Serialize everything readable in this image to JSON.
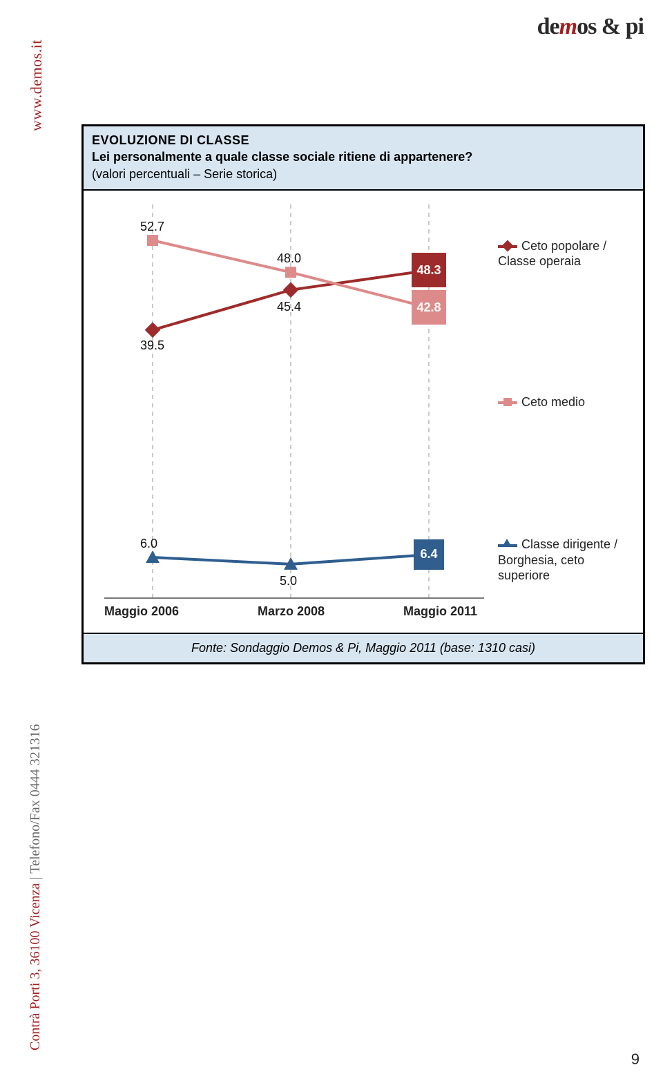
{
  "brand": {
    "logo_prefix": "de",
    "logo_m": "m",
    "logo_suffix": "os & pi"
  },
  "sidebar": {
    "url": "www.demos.it",
    "address_prefix": "Contrà Porti 3, 36100 Vicenza",
    "address_suffix": "Telefono/Fax 0444 321316"
  },
  "chart": {
    "type": "line",
    "title": "EVOLUZIONE DI CLASSE",
    "question": "Lei personalmente a quale classe sociale ritiene di appartenere?",
    "note": "(valori percentuali – Serie storica)",
    "source": "Fonte: Sondaggio Demos & Pi, Maggio 2011 (base: 1310 casi)",
    "x_labels": [
      "Maggio 2006",
      "Marzo 2008",
      "Maggio 2011"
    ],
    "y_domain": [
      0,
      58
    ],
    "plot_background": "#ffffff",
    "gridline_color": "#b8b8b8",
    "axis_color": "#777777",
    "label_fontsize": 18,
    "series": [
      {
        "name": "Ceto popolare / Classe operaia",
        "color": "#9e2b2b",
        "marker": "diamond",
        "line_width": 4,
        "values": [
          39.5,
          45.4,
          48.3
        ],
        "end_badge": {
          "bg": "#9e2b2b",
          "fg": "#ffffff",
          "size": 50
        }
      },
      {
        "name": "Ceto medio",
        "color": "#dd8a8a",
        "marker": "square",
        "line_width": 4,
        "values": [
          52.7,
          48.0,
          42.8
        ],
        "end_badge": {
          "bg": "#dd8a8a",
          "fg": "#ffffff",
          "size": 50
        }
      },
      {
        "name": "Classe dirigente / Borghesia, ceto superiore",
        "color": "#2f5e8f",
        "marker": "triangle",
        "line_width": 4,
        "values": [
          6.0,
          5.0,
          6.4
        ],
        "end_badge": {
          "bg": "#2f5e8f",
          "fg": "#ffffff",
          "size": 44
        }
      }
    ]
  },
  "page_number": "9"
}
